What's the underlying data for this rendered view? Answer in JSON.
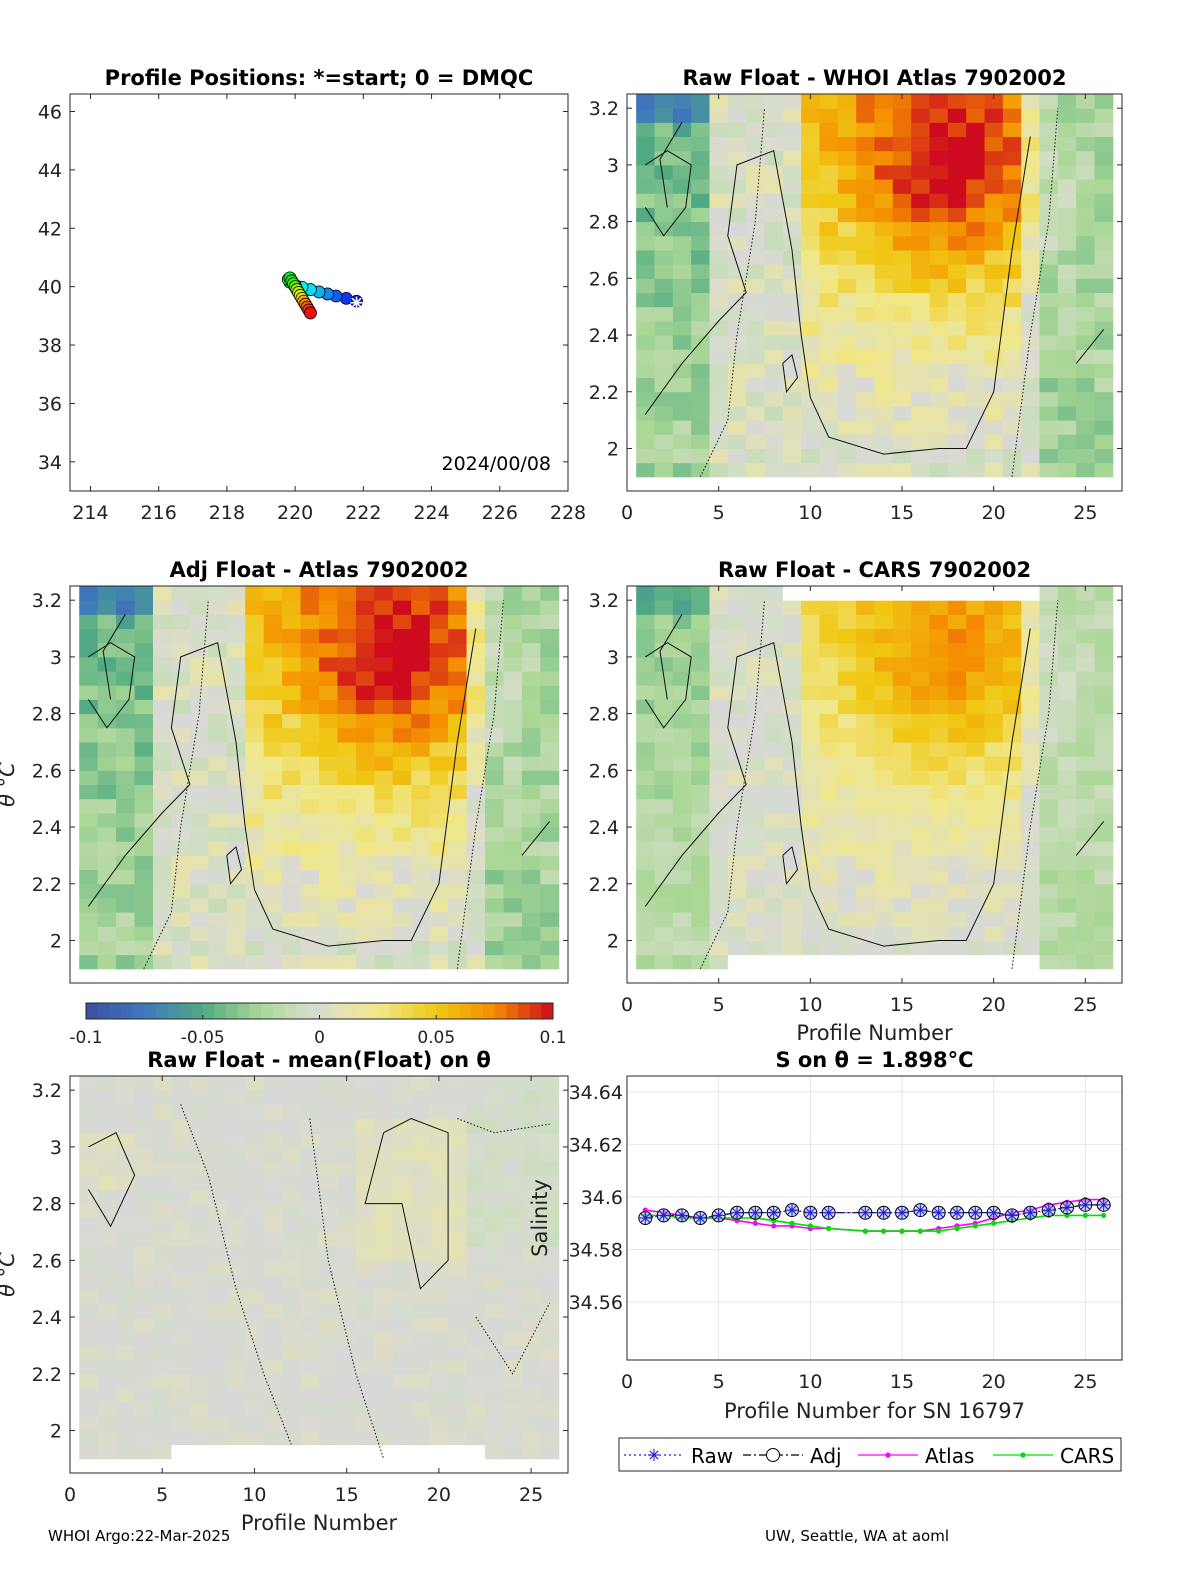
{
  "footer": {
    "left": "WHOI Argo:22-Mar-2025",
    "right": "UW, Seattle, WA at aoml"
  },
  "colorbar": {
    "ticks": [
      "-0.1",
      "-0.05",
      "0",
      "0.05",
      "0.1"
    ],
    "range": [
      -0.1,
      0.1
    ]
  },
  "chart_data": [
    {
      "id": "positions",
      "type": "scatter",
      "title": "Profile Positions: *=start; 0 = DMQC",
      "xlim": [
        213.4,
        228
      ],
      "ylim": [
        33,
        46.6
      ],
      "xticks": [
        "214",
        "216",
        "218",
        "220",
        "222",
        "224",
        "226",
        "228"
      ],
      "yticks": [
        "34",
        "36",
        "38",
        "40",
        "42",
        "44",
        "46"
      ],
      "annotation": "2024/00/08",
      "start_marker": [
        221.8,
        39.45
      ],
      "points": [
        [
          221.8,
          39.5
        ],
        [
          221.5,
          39.6
        ],
        [
          221.2,
          39.68
        ],
        [
          220.95,
          39.75
        ],
        [
          220.7,
          39.82
        ],
        [
          220.45,
          39.9
        ],
        [
          220.2,
          39.98
        ],
        [
          220.0,
          40.05
        ],
        [
          219.85,
          40.15
        ],
        [
          219.8,
          40.25
        ],
        [
          219.85,
          40.3
        ],
        [
          219.9,
          40.2
        ],
        [
          219.95,
          40.1
        ],
        [
          220.0,
          40.0
        ],
        [
          220.05,
          39.9
        ],
        [
          220.1,
          39.8
        ],
        [
          220.15,
          39.7
        ],
        [
          220.2,
          39.6
        ],
        [
          220.25,
          39.5
        ],
        [
          220.3,
          39.4
        ],
        [
          220.35,
          39.3
        ],
        [
          220.4,
          39.2
        ],
        [
          220.45,
          39.1
        ]
      ]
    },
    {
      "id": "raw-atlas",
      "type": "heatmap",
      "title": "Raw Float - WHOI Atlas  7902002",
      "xlabel": "",
      "ylabel": "",
      "xlim": [
        0,
        27
      ],
      "ylim": [
        1.85,
        3.25
      ],
      "xticks": [
        "0",
        "5",
        "10",
        "15",
        "20",
        "25"
      ],
      "yticks": [
        "2",
        "2.2",
        "2.4",
        "2.6",
        "2.8",
        "3",
        "3.2"
      ],
      "pattern": "atlas",
      "strength": 1.0
    },
    {
      "id": "adj-atlas",
      "type": "heatmap",
      "title": "Adj Float - Atlas  7902002",
      "xlabel": "",
      "ylabel": "θ °C",
      "xlim": [
        0,
        27
      ],
      "ylim": [
        1.85,
        3.25
      ],
      "xticks": [],
      "yticks": [
        "2",
        "2.2",
        "2.4",
        "2.6",
        "2.8",
        "3",
        "3.2"
      ],
      "pattern": "atlas",
      "strength": 1.0
    },
    {
      "id": "raw-cars",
      "type": "heatmap",
      "title": "Raw Float - CARS  7902002",
      "xlabel": "Profile Number",
      "ylabel": "",
      "xlim": [
        0,
        27
      ],
      "ylim": [
        1.85,
        3.25
      ],
      "xticks": [
        "0",
        "5",
        "10",
        "15",
        "20",
        "25"
      ],
      "yticks": [
        "2",
        "2.2",
        "2.4",
        "2.6",
        "2.8",
        "3",
        "3.2"
      ],
      "pattern": "cars",
      "strength": 0.7
    },
    {
      "id": "raw-mean",
      "type": "heatmap",
      "title": "Raw Float - mean(Float) on θ",
      "xlabel": "Profile Number",
      "ylabel": "θ °C",
      "xlim": [
        0,
        27
      ],
      "ylim": [
        1.85,
        3.25
      ],
      "xticks": [
        "0",
        "5",
        "10",
        "15",
        "20",
        "25"
      ],
      "yticks": [
        "2",
        "2.2",
        "2.4",
        "2.6",
        "2.8",
        "3",
        "3.2"
      ],
      "pattern": "mean",
      "strength": 0.25
    },
    {
      "id": "salinity",
      "type": "line",
      "title": "S on θ = 1.898°C",
      "xlabel": "Profile Number for SN 16797",
      "ylabel": "Salinity",
      "xlim": [
        0,
        27
      ],
      "ylim": [
        34.538,
        34.646
      ],
      "xticks": [
        "0",
        "5",
        "10",
        "15",
        "20",
        "25"
      ],
      "yticks": [
        "34.56",
        "34.58",
        "34.6",
        "34.62",
        "34.64"
      ],
      "x": [
        1,
        2,
        3,
        4,
        5,
        6,
        7,
        8,
        9,
        10,
        11,
        13,
        14,
        15,
        16,
        17,
        18,
        19,
        20,
        21,
        22,
        23,
        24,
        25,
        26
      ],
      "series": [
        {
          "name": "Raw",
          "color": "#2222cc",
          "values": [
            34.592,
            34.593,
            34.593,
            34.592,
            34.593,
            34.594,
            34.594,
            34.594,
            34.595,
            34.594,
            34.594,
            34.594,
            34.594,
            34.594,
            34.595,
            34.594,
            34.594,
            34.594,
            34.594,
            34.593,
            34.594,
            34.595,
            34.596,
            34.597,
            34.597
          ]
        },
        {
          "name": "Adj",
          "color": "#000000",
          "values": [
            34.592,
            34.593,
            34.593,
            34.592,
            34.593,
            34.594,
            34.594,
            34.594,
            34.595,
            34.594,
            34.594,
            34.594,
            34.594,
            34.594,
            34.595,
            34.594,
            34.594,
            34.594,
            34.594,
            34.593,
            34.594,
            34.595,
            34.596,
            34.597,
            34.597
          ]
        },
        {
          "name": "Atlas",
          "color": "#ff00ff",
          "values": [
            34.595,
            34.594,
            34.593,
            34.592,
            34.592,
            34.591,
            34.59,
            34.589,
            34.589,
            34.588,
            34.588,
            34.587,
            34.587,
            34.587,
            34.587,
            34.588,
            34.589,
            34.59,
            34.592,
            34.594,
            34.595,
            34.597,
            34.598,
            34.599,
            34.599
          ]
        },
        {
          "name": "CARS",
          "color": "#00dd00",
          "values": [
            34.593,
            34.593,
            34.592,
            34.592,
            34.592,
            34.592,
            34.592,
            34.591,
            34.59,
            34.589,
            34.588,
            34.587,
            34.587,
            34.587,
            34.587,
            34.587,
            34.588,
            34.589,
            34.59,
            34.591,
            34.592,
            34.593,
            34.593,
            34.593,
            34.593
          ]
        }
      ]
    }
  ]
}
